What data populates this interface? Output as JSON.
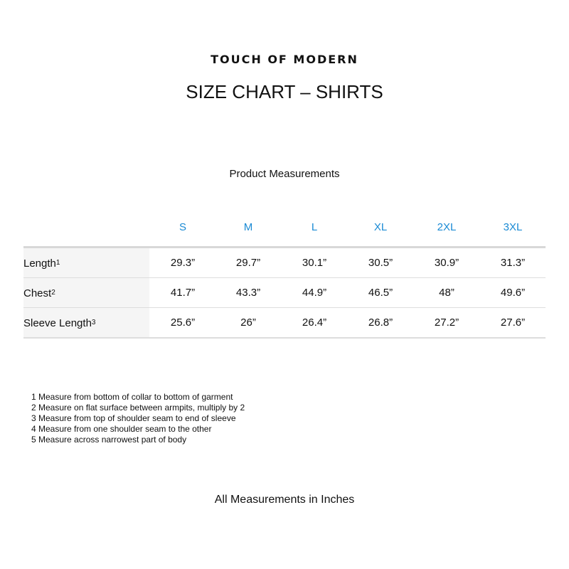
{
  "brand": "TOUCH OF MODERN",
  "title": "SIZE CHART – SHIRTS",
  "subtitle": "Product Measurements",
  "sizes": [
    "S",
    "M",
    "L",
    "XL",
    "2XL",
    "3XL"
  ],
  "rows": [
    {
      "label": "Length",
      "sup": "1",
      "values": [
        "29.3”",
        "29.7”",
        "30.1”",
        "30.5”",
        "30.9”",
        "31.3”"
      ]
    },
    {
      "label": "Chest",
      "sup": "2",
      "values": [
        "41.7”",
        "43.3”",
        "44.9”",
        "46.5”",
        "48”",
        "49.6”"
      ]
    },
    {
      "label": "Sleeve Length",
      "sup": "3",
      "values": [
        "25.6”",
        "26”",
        "26.4”",
        "26.8”",
        "27.2”",
        "27.6”"
      ]
    }
  ],
  "notes": [
    "1 Measure from bottom of collar to bottom of garment",
    "2 Measure on flat surface between armpits, multiply by 2",
    "3 Measure from top of shoulder seam to end of sleeve",
    "4 Measure from one shoulder seam to the other",
    "5 Measure across narrowest part of body"
  ],
  "footer": "All Measurements in Inches",
  "colors": {
    "size_header": "#1a8ad4",
    "label_bg": "#f5f5f5"
  }
}
